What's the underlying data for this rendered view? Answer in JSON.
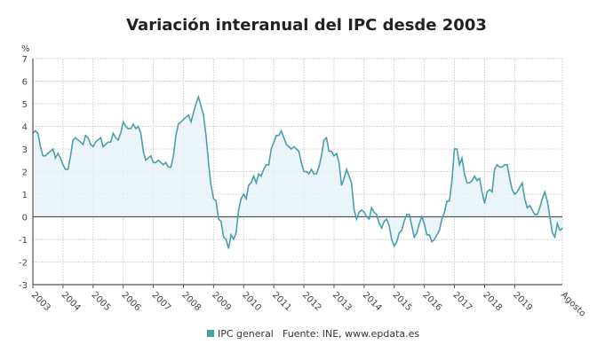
{
  "chart_data": {
    "type": "area",
    "title": "Variación interanual del IPC desde 2003",
    "ylabel": "%",
    "ylim": [
      -3,
      7
    ],
    "yticks": [
      7,
      6,
      5,
      4,
      3,
      2,
      1,
      0,
      -1,
      -2,
      -3
    ],
    "xticks": [
      "2003",
      "2004",
      "2005",
      "2006",
      "2007",
      "2008",
      "2009",
      "2010",
      "2011",
      "2012",
      "2013",
      "2014",
      "2015",
      "2016",
      "2017",
      "2018",
      "2019"
    ],
    "x_end_label": "Agosto",
    "x_range": [
      "2003-01",
      "2020-08"
    ],
    "grid": true,
    "legend_position": "bottom",
    "source": "Fuente: INE, www.epdata.es",
    "colors": {
      "line": "#4a9faa",
      "fill": "#e6f3f8",
      "zero": "#555555",
      "grid": "#d6d6d6"
    },
    "series": [
      {
        "name": "IPC general",
        "values": [
          3.7,
          3.8,
          3.7,
          3.1,
          2.7,
          2.7,
          2.8,
          2.9,
          3.0,
          2.6,
          2.8,
          2.6,
          2.3,
          2.1,
          2.1,
          2.7,
          3.4,
          3.5,
          3.4,
          3.3,
          3.2,
          3.6,
          3.5,
          3.2,
          3.1,
          3.3,
          3.4,
          3.5,
          3.1,
          3.2,
          3.3,
          3.3,
          3.7,
          3.5,
          3.4,
          3.7,
          4.2,
          4.0,
          3.9,
          3.9,
          4.1,
          3.9,
          4.0,
          3.7,
          2.9,
          2.5,
          2.6,
          2.7,
          2.4,
          2.4,
          2.5,
          2.4,
          2.3,
          2.4,
          2.2,
          2.2,
          2.7,
          3.6,
          4.1,
          4.2,
          4.3,
          4.4,
          4.5,
          4.2,
          4.6,
          5.0,
          5.3,
          4.9,
          4.5,
          3.6,
          2.4,
          1.4,
          0.8,
          0.7,
          -0.1,
          -0.2,
          -0.9,
          -1.0,
          -1.4,
          -0.8,
          -1.0,
          -0.7,
          0.3,
          0.8,
          1.0,
          0.8,
          1.4,
          1.5,
          1.8,
          1.5,
          1.9,
          1.8,
          2.1,
          2.3,
          2.3,
          3.0,
          3.3,
          3.6,
          3.6,
          3.8,
          3.5,
          3.2,
          3.1,
          3.0,
          3.1,
          3.0,
          2.9,
          2.4,
          2.0,
          2.0,
          1.9,
          2.1,
          1.9,
          1.9,
          2.2,
          2.7,
          3.4,
          3.5,
          2.9,
          2.9,
          2.7,
          2.8,
          2.4,
          1.4,
          1.7,
          2.1,
          1.8,
          1.5,
          0.3,
          -0.1,
          0.2,
          0.3,
          0.2,
          0.0,
          -0.1,
          0.4,
          0.2,
          0.1,
          -0.3,
          -0.5,
          -0.2,
          -0.1,
          -0.4,
          -1.0,
          -1.3,
          -1.1,
          -0.7,
          -0.6,
          -0.2,
          0.1,
          0.1,
          -0.4,
          -0.9,
          -0.7,
          -0.3,
          0.0,
          -0.3,
          -0.8,
          -0.8,
          -1.1,
          -1.0,
          -0.8,
          -0.6,
          -0.1,
          0.2,
          0.7,
          0.7,
          1.6,
          3.0,
          3.0,
          2.3,
          2.6,
          1.9,
          1.5,
          1.5,
          1.6,
          1.8,
          1.6,
          1.7,
          1.1,
          0.6,
          1.1,
          1.2,
          1.1,
          2.1,
          2.3,
          2.2,
          2.2,
          2.3,
          2.3,
          1.7,
          1.2,
          1.0,
          1.1,
          1.3,
          1.5,
          0.8,
          0.4,
          0.5,
          0.3,
          0.1,
          0.1,
          0.4,
          0.8,
          1.1,
          0.7,
          0.0,
          -0.7,
          -0.9,
          -0.3,
          -0.6,
          -0.5
        ]
      }
    ]
  }
}
